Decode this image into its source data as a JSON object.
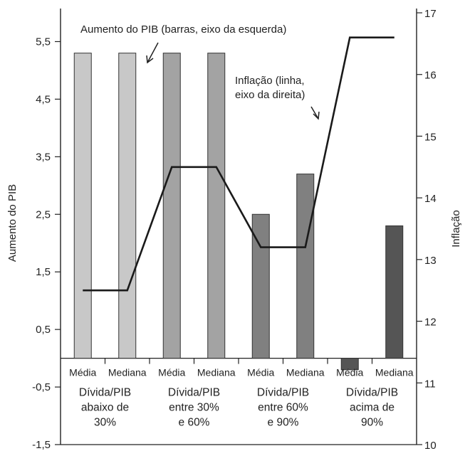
{
  "chart_data": {
    "type": "bar",
    "ylabel": "Aumento do PIB",
    "y2label": "Inflação",
    "ylim": [
      -1.5,
      6.0
    ],
    "y2lim": [
      10,
      17
    ],
    "yticks": [
      "5,5",
      "4,5",
      "3,5",
      "2,5",
      "1,5",
      "0,5",
      "-0,5",
      "-1,5"
    ],
    "y2ticks": [
      "17",
      "16",
      "15",
      "14",
      "13",
      "12",
      "11",
      "10"
    ],
    "categories": [
      "Média",
      "Mediana",
      "Média",
      "Mediana",
      "Média",
      "Mediana",
      "Média",
      "Mediana"
    ],
    "groups": [
      {
        "lines": [
          "Dívida/PIB",
          "abaixo de",
          "30%"
        ],
        "color": "#c8c8c8"
      },
      {
        "lines": [
          "Dívida/PIB",
          "entre 30%",
          "e 60%"
        ],
        "color": "#a3a3a3"
      },
      {
        "lines": [
          "Dívida/PIB",
          "entre 60%",
          "e 90%"
        ],
        "color": "#808080"
      },
      {
        "lines": [
          "Dívida/PIB",
          "acima de",
          "90%"
        ],
        "color": "#555555"
      }
    ],
    "series": [
      {
        "type": "bar",
        "axis": "left",
        "values": [
          5.3,
          5.3,
          5.3,
          5.3,
          2.5,
          3.2,
          -0.2,
          2.3
        ]
      },
      {
        "type": "line",
        "axis": "right",
        "values": [
          12.5,
          12.5,
          14.5,
          14.5,
          13.2,
          13.2,
          16.6,
          16.6
        ]
      }
    ],
    "annotations": [
      {
        "id": "bars",
        "text": "Aumento do PIB (barras, eixo da esquerda)"
      },
      {
        "id": "line",
        "lines": [
          "Inflação (linha,",
          "eixo da direita)"
        ]
      }
    ],
    "grid": false,
    "legend": "none"
  }
}
